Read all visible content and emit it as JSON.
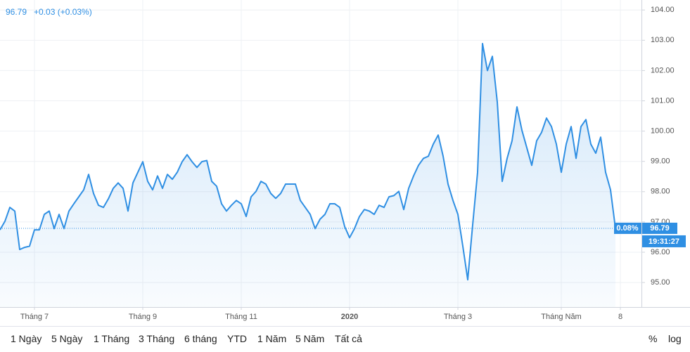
{
  "chart_data": {
    "type": "line",
    "header_price": 96.79,
    "header_change": "+0.03 (+0.03%)",
    "last_price": 96.79,
    "last_change_badge": "0.08%",
    "last_time": "19:31:27",
    "categories": [
      null,
      null,
      null,
      null,
      null,
      null,
      null,
      "Tháng 7",
      null,
      null,
      null,
      null,
      null,
      null,
      null,
      null,
      null,
      null,
      null,
      null,
      null,
      null,
      null,
      null,
      null,
      null,
      null,
      null,
      null,
      "Tháng 9",
      null,
      null,
      null,
      null,
      null,
      null,
      null,
      null,
      null,
      null,
      null,
      null,
      null,
      null,
      null,
      null,
      null,
      null,
      null,
      "Tháng 11",
      null,
      null,
      null,
      null,
      null,
      null,
      null,
      null,
      null,
      null,
      null,
      null,
      null,
      null,
      null,
      null,
      null,
      null,
      null,
      null,
      null,
      "2020",
      null,
      null,
      null,
      null,
      null,
      null,
      null,
      null,
      null,
      null,
      null,
      null,
      null,
      null,
      null,
      null,
      null,
      null,
      null,
      null,
      null,
      "Tháng 3",
      null,
      null,
      null,
      null,
      null,
      null,
      null,
      null,
      null,
      null,
      null,
      null,
      null,
      null,
      null,
      null,
      null,
      null,
      null,
      null,
      "Tháng Năm",
      null,
      null,
      null,
      null,
      null,
      null,
      null,
      null,
      null,
      null,
      null,
      "8"
    ],
    "series": [
      {
        "color": "#2f8fe3",
        "values": [
          96.74,
          97.02,
          97.48,
          97.36,
          96.09,
          96.16,
          96.2,
          96.74,
          96.74,
          97.25,
          97.36,
          96.78,
          97.25,
          96.78,
          97.36,
          97.6,
          97.83,
          98.06,
          98.57,
          97.94,
          97.55,
          97.48,
          97.76,
          98.11,
          98.29,
          98.11,
          97.36,
          98.29,
          98.64,
          98.99,
          98.34,
          98.06,
          98.52,
          98.11,
          98.57,
          98.41,
          98.64,
          98.99,
          99.22,
          98.99,
          98.8,
          98.99,
          99.03,
          98.34,
          98.18,
          97.6,
          97.36,
          97.55,
          97.71,
          97.6,
          97.18,
          97.83,
          98.01,
          98.34,
          98.25,
          97.94,
          97.78,
          97.94,
          98.25,
          98.25,
          98.25,
          97.71,
          97.48,
          97.25,
          96.78,
          97.09,
          97.25,
          97.6,
          97.6,
          97.48,
          96.85,
          96.48,
          96.78,
          97.18,
          97.41,
          97.36,
          97.25,
          97.55,
          97.48,
          97.83,
          97.87,
          98.01,
          97.41,
          98.11,
          98.52,
          98.87,
          99.1,
          99.17,
          99.57,
          99.87,
          99.17,
          98.25,
          97.71,
          97.25,
          96.2,
          95.09,
          96.9,
          98.64,
          102.89,
          102.0,
          102.47,
          100.96,
          98.34,
          99.1,
          99.68,
          100.8,
          100.03,
          99.45,
          98.87,
          99.68,
          99.96,
          100.43,
          100.15,
          99.57,
          98.64,
          99.57,
          100.15,
          99.1,
          100.15,
          100.38,
          99.57,
          99.27,
          99.8,
          98.64,
          98.06,
          96.79,
          null
        ]
      }
    ],
    "ylim": [
      94.19,
      104.33
    ],
    "yticks": [
      {
        "value": 95,
        "label": "95.00"
      },
      {
        "value": 96,
        "label": "96.00"
      },
      {
        "value": 97,
        "label": "97.00"
      },
      {
        "value": 98,
        "label": "98.00"
      },
      {
        "value": 99,
        "label": "99.00"
      },
      {
        "value": 100,
        "label": "100.00"
      },
      {
        "value": 101,
        "label": "101.00"
      },
      {
        "value": 102,
        "label": "102.00"
      },
      {
        "value": 103,
        "label": "103.00"
      },
      {
        "value": 104,
        "label": "104.00"
      }
    ],
    "grid": true
  },
  "toolbar": {
    "ranges": [
      "1 Ngày",
      "5 Ngày",
      "1 Tháng",
      "3 Tháng",
      "6 tháng",
      "YTD",
      "1 Năm",
      "5 Năm",
      "Tất cả"
    ],
    "scale_buttons": [
      "%",
      "log"
    ]
  }
}
